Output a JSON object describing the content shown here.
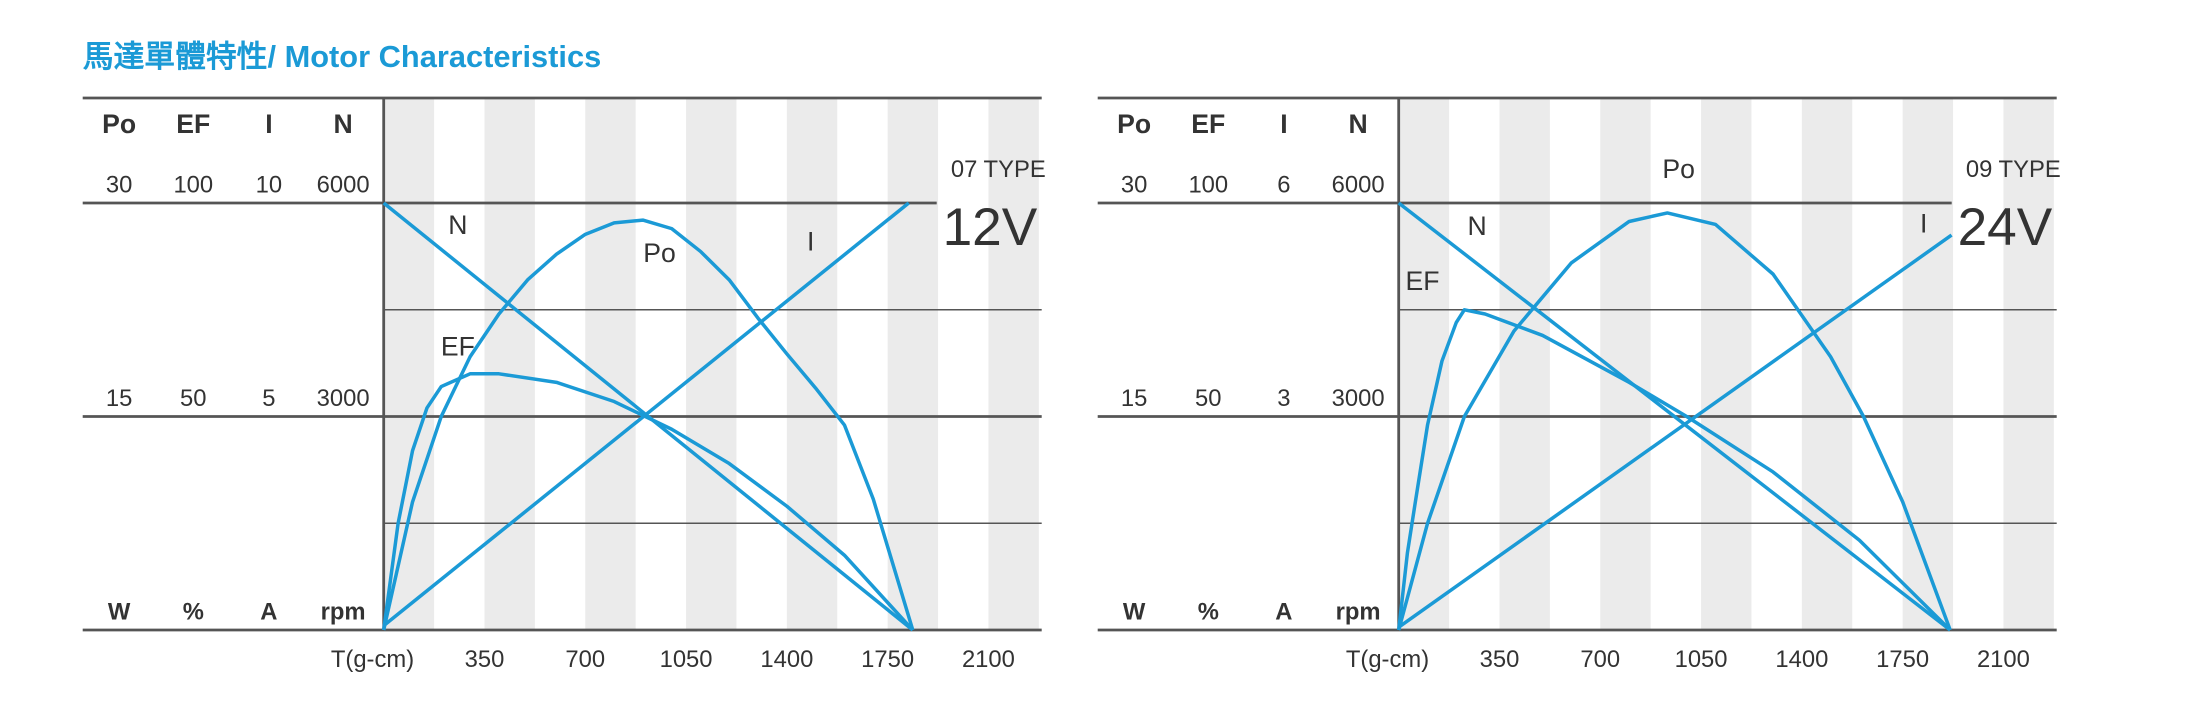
{
  "page_title": "馬達單體特性/ Motor Characteristics",
  "title_color": "#1b9ad6",
  "chart_data": [
    {
      "type": "line",
      "model": "07 TYPE",
      "voltage": "12V",
      "x_label": "T(g-cm)",
      "xlim": [
        0,
        2285
      ],
      "xticks": [
        350,
        700,
        1050,
        1400,
        1750,
        2100
      ],
      "stripes": true,
      "axes": [
        {
          "name": "Po",
          "unit": "W",
          "ylim": [
            0,
            30
          ],
          "yticks": [
            15,
            30
          ]
        },
        {
          "name": "EF",
          "unit": "%",
          "ylim": [
            0,
            100
          ],
          "yticks": [
            50,
            100
          ]
        },
        {
          "name": "I",
          "unit": "A",
          "ylim": [
            0,
            10
          ],
          "yticks": [
            5,
            10
          ]
        },
        {
          "name": "N",
          "unit": "rpm",
          "ylim": [
            0,
            6000
          ],
          "yticks": [
            3000,
            6000
          ]
        }
      ],
      "series": [
        {
          "name": "Po",
          "color": "#1b9ad6",
          "x": [
            0,
            100,
            200,
            300,
            400,
            500,
            600,
            700,
            800,
            900,
            1000,
            1100,
            1200,
            1300,
            1400,
            1500,
            1600,
            1700,
            1837
          ],
          "values": [
            0,
            9,
            15,
            19.2,
            22.2,
            24.6,
            26.4,
            27.8,
            28.6,
            28.8,
            28.2,
            26.6,
            24.6,
            21.9,
            19.4,
            17,
            14.4,
            9.2,
            0
          ]
        },
        {
          "name": "EF",
          "color": "#1b9ad6",
          "x": [
            0,
            50,
            100,
            150,
            200,
            300,
            400,
            600,
            800,
            1000,
            1200,
            1400,
            1600,
            1837
          ],
          "values": [
            0,
            25,
            42,
            52,
            57,
            60,
            60,
            58,
            53.5,
            47,
            39,
            29,
            17.5,
            0
          ]
        },
        {
          "name": "I",
          "color": "#1b9ad6",
          "x": [
            0,
            1823
          ],
          "values": [
            0.1,
            10
          ]
        },
        {
          "name": "N",
          "color": "#1b9ad6",
          "x": [
            0,
            1837
          ],
          "values": [
            6000,
            0
          ]
        }
      ]
    },
    {
      "type": "line",
      "model": "09 TYPE",
      "voltage": "24V",
      "x_label": "T(g-cm)",
      "xlim": [
        0,
        2285
      ],
      "xticks": [
        350,
        700,
        1050,
        1400,
        1750,
        2100
      ],
      "stripes": true,
      "axes": [
        {
          "name": "Po",
          "unit": "W",
          "ylim": [
            0,
            30
          ],
          "yticks": [
            15,
            30
          ]
        },
        {
          "name": "EF",
          "unit": "%",
          "ylim": [
            0,
            100
          ],
          "yticks": [
            50,
            100
          ]
        },
        {
          "name": "I",
          "unit": "A",
          "ylim": [
            0,
            6
          ],
          "yticks": [
            3,
            6
          ]
        },
        {
          "name": "N",
          "unit": "rpm",
          "ylim": [
            0,
            6000
          ],
          "yticks": [
            3000,
            6000
          ]
        }
      ],
      "series": [
        {
          "name": "Po",
          "color": "#1b9ad6",
          "x": [
            0,
            100,
            228,
            400,
            600,
            800,
            933,
            1100,
            1300,
            1500,
            1614,
            1750,
            1915
          ],
          "values": [
            0,
            7.5,
            15,
            21,
            25.8,
            28.7,
            29.3,
            28.5,
            25,
            19.2,
            15,
            9,
            0
          ]
        },
        {
          "name": "EF",
          "color": "#1b9ad6",
          "x": [
            0,
            30,
            58,
            100,
            150,
            200,
            228,
            300,
            500,
            800,
            1000,
            1300,
            1600,
            1915
          ],
          "values": [
            0,
            18,
            30,
            48,
            63,
            72,
            75,
            74,
            69,
            58,
            50,
            37,
            21,
            0
          ]
        },
        {
          "name": "I",
          "color": "#1b9ad6",
          "x": [
            0,
            1920
          ],
          "values": [
            0.04,
            5.55
          ]
        },
        {
          "name": "N",
          "color": "#1b9ad6",
          "x": [
            0,
            1915
          ],
          "values": [
            6000,
            0
          ]
        }
      ]
    }
  ]
}
